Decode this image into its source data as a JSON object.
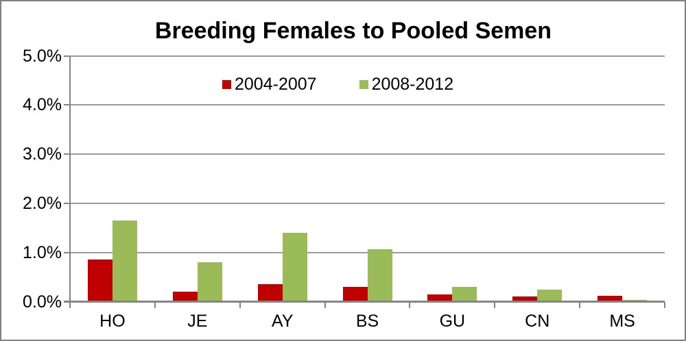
{
  "chart_data": {
    "type": "bar",
    "title": "Breeding Females to Pooled Semen",
    "categories": [
      "HO",
      "JE",
      "AY",
      "BS",
      "GU",
      "CN",
      "MS"
    ],
    "series": [
      {
        "name": "2004-2007",
        "color": "#C00000",
        "values": [
          0.86,
          0.2,
          0.35,
          0.3,
          0.15,
          0.1,
          0.12
        ]
      },
      {
        "name": "2008-2012",
        "color": "#9BBB59",
        "values": [
          1.65,
          0.8,
          1.4,
          1.06,
          0.3,
          0.25,
          0.04
        ]
      }
    ],
    "xlabel": "",
    "ylabel": "",
    "ylim": [
      0,
      5
    ],
    "y_tick_step": 1.0,
    "y_tick_labels": [
      "5.0%",
      "4.0%",
      "3.0%",
      "2.0%",
      "1.0%",
      "0.0%"
    ],
    "grid": true,
    "legend_position": "top-center",
    "colors": {
      "axis": "#848484",
      "gridline": "#9A9A9A",
      "frame_border": "#808080",
      "text": "#000000",
      "background": "#FFFFFF"
    }
  }
}
